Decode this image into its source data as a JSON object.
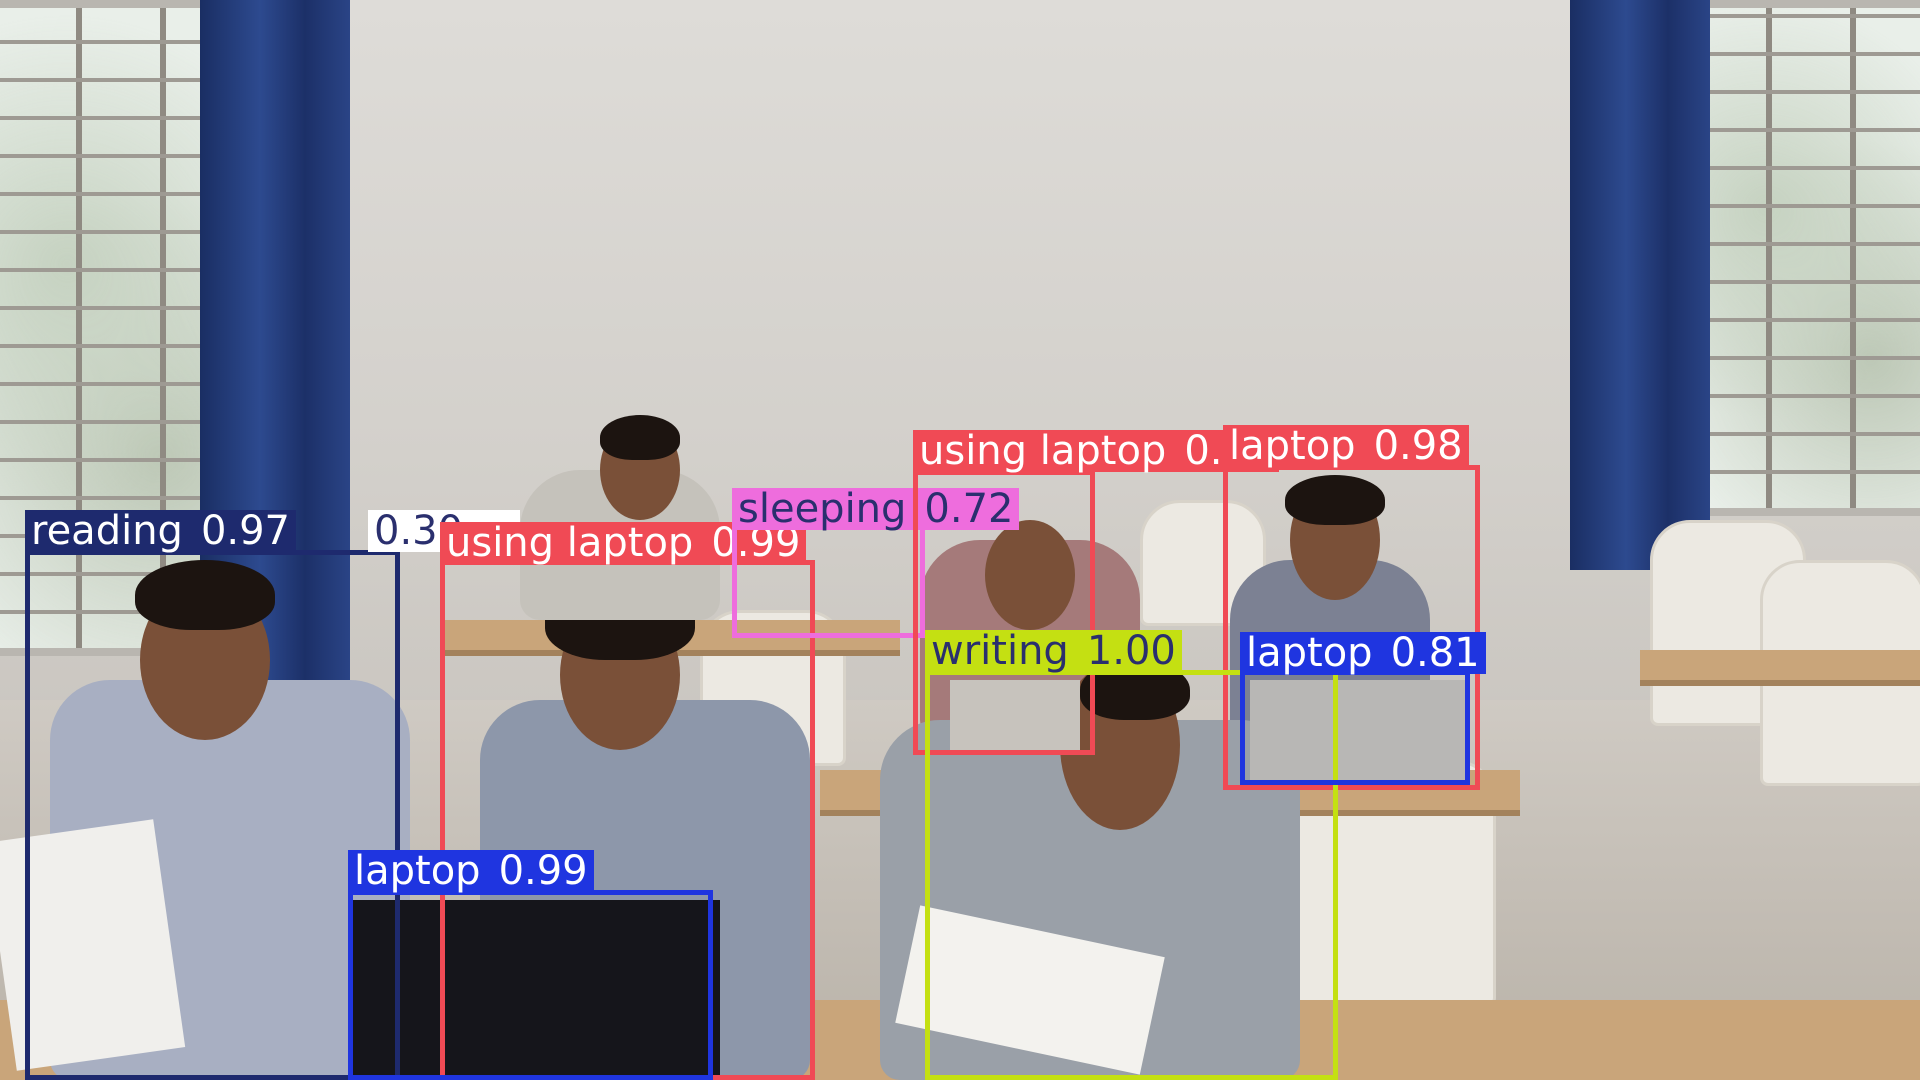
{
  "colors": {
    "reading": "#1e2a6e",
    "using_laptop": "#f04a55",
    "laptop": "#1f35e0",
    "sleeping": "#ee6ddd",
    "writing": "#c4e012",
    "label_text_light": "#ffffff",
    "label_text_dark": "#2a2f6e"
  },
  "detections": [
    {
      "id": "reading",
      "label": "reading",
      "confidence": "0.97",
      "color_key": "reading",
      "text": "light"
    },
    {
      "id": "partial",
      "label": "",
      "confidence": "0.30",
      "color_key": "partial",
      "text": "dark"
    },
    {
      "id": "using-laptop-1",
      "label": "using laptop",
      "confidence": "0.99",
      "color_key": "using_laptop",
      "text": "light"
    },
    {
      "id": "laptop-1",
      "label": "laptop",
      "confidence": "0.99",
      "color_key": "laptop",
      "text": "light"
    },
    {
      "id": "sleeping",
      "label": "sleeping",
      "confidence": "0.72",
      "color_key": "sleeping",
      "text": "dark"
    },
    {
      "id": "using-laptop-2",
      "label": "using laptop",
      "confidence": "0.99",
      "color_key": "using_laptop",
      "text": "light"
    },
    {
      "id": "laptop-2",
      "label": "laptop",
      "confidence": "0.98",
      "color_key": "using_laptop",
      "text": "light"
    },
    {
      "id": "writing",
      "label": "writing",
      "confidence": "1.00",
      "color_key": "writing",
      "text": "dark"
    },
    {
      "id": "laptop-3",
      "label": "laptop",
      "confidence": "0.81",
      "color_key": "laptop",
      "text": "light"
    }
  ]
}
